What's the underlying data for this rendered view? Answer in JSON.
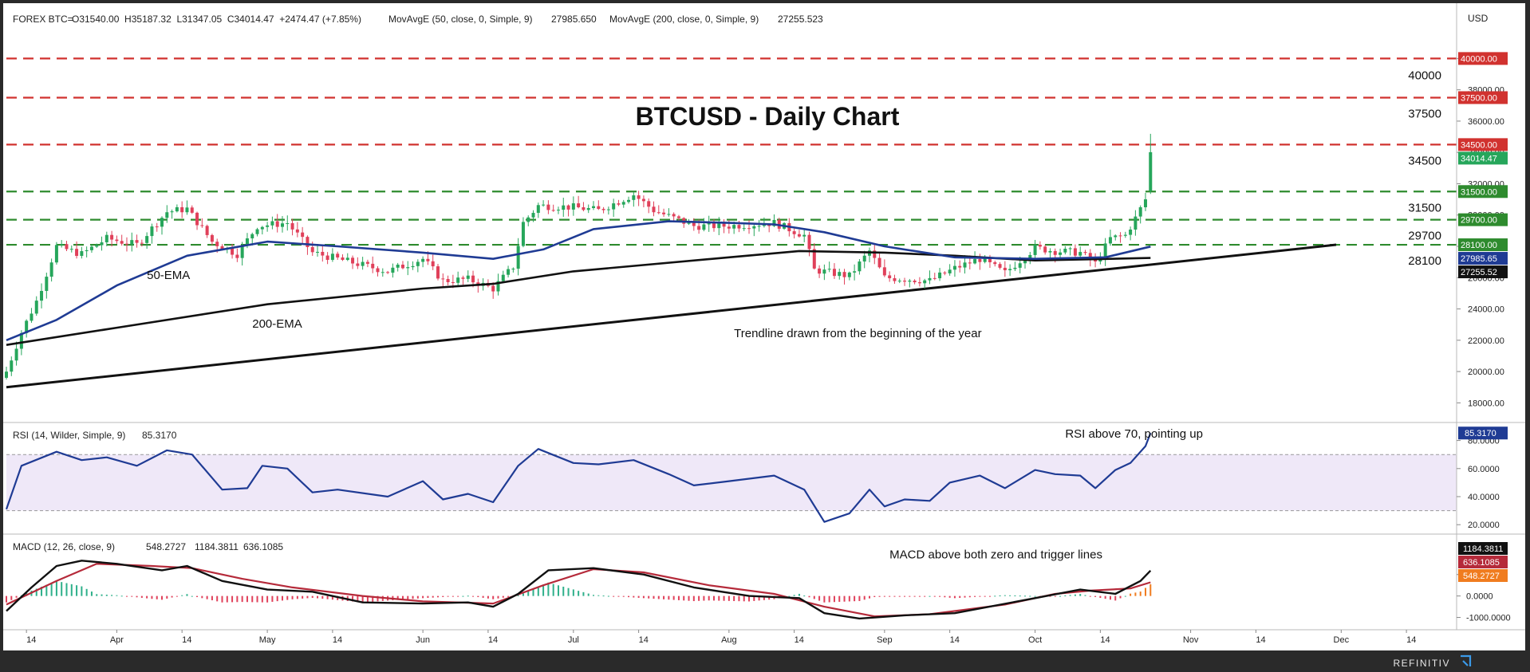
{
  "header": {
    "symbol": "FOREX BTC=",
    "ohlc": "O31540.00  H35187.32  L31347.05  C34014.47  +2474.47 (+7.85%)",
    "ma50": "MovAvgE (50, close, 0, Simple, 9)",
    "ma50_value": "27985.650",
    "ma200": "MovAvgE (200, close, 0, Simple, 9)",
    "ma200_value": "27255.523"
  },
  "axis_unit": "USD",
  "branding": "REFINITIV",
  "chart_data": [
    {
      "type": "candlestick",
      "title": "BTCUSD - Daily Chart",
      "ylim": [
        17000,
        41700
      ],
      "yticks": [
        18000,
        20000,
        22000,
        24000,
        26000,
        28000,
        30000,
        32000,
        34000,
        36000,
        38000,
        40000
      ],
      "ytick_labels": [
        "18000.00",
        "20000.00",
        "22000.00",
        "24000.00",
        "26000.00",
        "28000.00",
        "30000.00",
        "32000.00",
        "34000.00",
        "36000.00",
        "38000.00",
        "40000.00"
      ],
      "x_axis": {
        "start": "2023-03-10",
        "end": "2023-12-24",
        "ticks": [
          {
            "date": "2023-03-14",
            "label": "14"
          },
          {
            "date": "2023-04-01",
            "label": "Apr"
          },
          {
            "date": "2023-04-14",
            "label": "14"
          },
          {
            "date": "2023-05-01",
            "label": "May"
          },
          {
            "date": "2023-05-14",
            "label": "14"
          },
          {
            "date": "2023-06-01",
            "label": "Jun"
          },
          {
            "date": "2023-06-14",
            "label": "14"
          },
          {
            "date": "2023-07-01",
            "label": "Jul"
          },
          {
            "date": "2023-07-14",
            "label": "14"
          },
          {
            "date": "2023-08-01",
            "label": "Aug"
          },
          {
            "date": "2023-08-14",
            "label": "14"
          },
          {
            "date": "2023-09-01",
            "label": "Sep"
          },
          {
            "date": "2023-09-14",
            "label": "14"
          },
          {
            "date": "2023-10-01",
            "label": "Oct"
          },
          {
            "date": "2023-10-14",
            "label": "14"
          },
          {
            "date": "2023-11-01",
            "label": "Nov"
          },
          {
            "date": "2023-11-14",
            "label": "14"
          },
          {
            "date": "2023-12-01",
            "label": "Dec"
          },
          {
            "date": "2023-12-14",
            "label": "14"
          }
        ]
      },
      "close_anchors": [
        [
          "2023-03-10",
          20000
        ],
        [
          "2023-03-13",
          22500
        ],
        [
          "2023-03-16",
          24500
        ],
        [
          "2023-03-20",
          28000
        ],
        [
          "2023-03-25",
          27500
        ],
        [
          "2023-03-30",
          28500
        ],
        [
          "2023-04-05",
          28100
        ],
        [
          "2023-04-11",
          30200
        ],
        [
          "2023-04-15",
          30400
        ],
        [
          "2023-04-20",
          28300
        ],
        [
          "2023-04-25",
          27500
        ],
        [
          "2023-04-29",
          29300
        ],
        [
          "2023-05-05",
          29500
        ],
        [
          "2023-05-10",
          27600
        ],
        [
          "2023-05-15",
          27200
        ],
        [
          "2023-05-25",
          26400
        ],
        [
          "2023-06-01",
          27200
        ],
        [
          "2023-06-05",
          25800
        ],
        [
          "2023-06-10",
          25900
        ],
        [
          "2023-06-15",
          25300
        ],
        [
          "2023-06-19",
          26700
        ],
        [
          "2023-06-21",
          29500
        ],
        [
          "2023-06-24",
          30600
        ],
        [
          "2023-07-01",
          30500
        ],
        [
          "2023-07-06",
          30300
        ],
        [
          "2023-07-13",
          31300
        ],
        [
          "2023-07-17",
          30300
        ],
        [
          "2023-07-25",
          29300
        ],
        [
          "2023-08-01",
          29300
        ],
        [
          "2023-08-10",
          29500
        ],
        [
          "2023-08-16",
          28700
        ],
        [
          "2023-08-18",
          26500
        ],
        [
          "2023-08-25",
          26100
        ],
        [
          "2023-08-29",
          27700
        ],
        [
          "2023-09-01",
          26000
        ],
        [
          "2023-09-10",
          25800
        ],
        [
          "2023-09-15",
          26600
        ],
        [
          "2023-09-20",
          27200
        ],
        [
          "2023-09-25",
          26300
        ],
        [
          "2023-10-01",
          27900
        ],
        [
          "2023-10-05",
          27700
        ],
        [
          "2023-10-10",
          27600
        ],
        [
          "2023-10-13",
          26900
        ],
        [
          "2023-10-16",
          28500
        ],
        [
          "2023-10-19",
          28700
        ],
        [
          "2023-10-21",
          29800
        ],
        [
          "2023-10-23",
          31000
        ],
        [
          "2023-10-24",
          34014
        ]
      ],
      "last_candle": {
        "date": "2023-10-24",
        "open": 31540.0,
        "high": 35187.32,
        "low": 31347.05,
        "close": 34014.47
      },
      "ema50": [
        [
          "2023-03-10",
          22000
        ],
        [
          "2023-03-20",
          23300
        ],
        [
          "2023-04-01",
          25500
        ],
        [
          "2023-04-15",
          27400
        ],
        [
          "2023-05-01",
          28300
        ],
        [
          "2023-05-15",
          28000
        ],
        [
          "2023-06-01",
          27600
        ],
        [
          "2023-06-15",
          27200
        ],
        [
          "2023-06-25",
          27800
        ],
        [
          "2023-07-05",
          29100
        ],
        [
          "2023-07-20",
          29600
        ],
        [
          "2023-08-01",
          29500
        ],
        [
          "2023-08-10",
          29400
        ],
        [
          "2023-08-20",
          28900
        ],
        [
          "2023-09-01",
          28000
        ],
        [
          "2023-09-15",
          27300
        ],
        [
          "2023-10-01",
          27200
        ],
        [
          "2023-10-15",
          27300
        ],
        [
          "2023-10-24",
          27986
        ]
      ],
      "ema200": [
        [
          "2023-03-10",
          21700
        ],
        [
          "2023-04-01",
          22800
        ],
        [
          "2023-05-01",
          24300
        ],
        [
          "2023-06-01",
          25300
        ],
        [
          "2023-06-15",
          25600
        ],
        [
          "2023-07-01",
          26400
        ],
        [
          "2023-08-01",
          27300
        ],
        [
          "2023-08-15",
          27700
        ],
        [
          "2023-09-01",
          27600
        ],
        [
          "2023-09-15",
          27400
        ],
        [
          "2023-10-01",
          27100
        ],
        [
          "2023-10-24",
          27256
        ]
      ],
      "trendline": {
        "from": [
          "2023-03-10",
          19000
        ],
        "to": [
          "2023-11-30",
          28100
        ]
      },
      "levels": [
        {
          "value": 40000,
          "label": "40000",
          "badge": "40000.00",
          "color": "#d1322f",
          "side": "resistance"
        },
        {
          "value": 37500,
          "label": "37500",
          "badge": "37500.00",
          "color": "#d1322f",
          "side": "resistance"
        },
        {
          "value": 34500,
          "label": "34500",
          "badge": "34500.00",
          "color": "#d1322f",
          "side": "resistance"
        },
        {
          "value": 31500,
          "label": "31500",
          "badge": "31500.00",
          "color": "#2e8b2e",
          "side": "support"
        },
        {
          "value": 29700,
          "label": "29700",
          "badge": "29700.00",
          "color": "#2e8b2e",
          "side": "support"
        },
        {
          "value": 28100,
          "label": "28100",
          "badge": "28100.00",
          "color": "#2e8b2e",
          "side": "support"
        }
      ],
      "price_badges": [
        {
          "value": 34014.47,
          "label": "34014.47",
          "color": "#26a65b"
        },
        {
          "value": 27985.65,
          "label": "27985.65",
          "color": "#1f3b94"
        },
        {
          "value": 27255.52,
          "label": "27255.52",
          "color": "#111111"
        }
      ],
      "annotations": [
        {
          "text": "50-EMA",
          "at": [
            "2023-04-07",
            25900
          ]
        },
        {
          "text": "200-EMA",
          "at": [
            "2023-04-28",
            22800
          ]
        },
        {
          "text": "Trendline drawn from the beginning of the year",
          "at": [
            "2023-08-02",
            22200
          ]
        }
      ],
      "colors": {
        "up": "#26a65b",
        "down": "#e0405a",
        "ema50": "#1f3b94",
        "ema200": "#111111"
      }
    },
    {
      "type": "line",
      "title": "RSI (14, Wilder, Simple, 9)",
      "value_label": "85.3170",
      "ylim": [
        15,
        90
      ],
      "yticks": [
        20,
        40,
        60,
        80
      ],
      "ytick_labels": [
        "20.0000",
        "40.0000",
        "60.0000",
        "80.0000"
      ],
      "band": [
        30,
        70
      ],
      "series": [
        {
          "points": [
            [
              "2023-03-10",
              31
            ],
            [
              "2023-03-13",
              62
            ],
            [
              "2023-03-20",
              72
            ],
            [
              "2023-03-25",
              66
            ],
            [
              "2023-03-30",
              68
            ],
            [
              "2023-04-05",
              62
            ],
            [
              "2023-04-11",
              73
            ],
            [
              "2023-04-16",
              70
            ],
            [
              "2023-04-22",
              45
            ],
            [
              "2023-04-27",
              46
            ],
            [
              "2023-04-30",
              62
            ],
            [
              "2023-05-05",
              60
            ],
            [
              "2023-05-10",
              43
            ],
            [
              "2023-05-15",
              45
            ],
            [
              "2023-05-25",
              40
            ],
            [
              "2023-06-01",
              51
            ],
            [
              "2023-06-05",
              38
            ],
            [
              "2023-06-10",
              42
            ],
            [
              "2023-06-15",
              36
            ],
            [
              "2023-06-20",
              62
            ],
            [
              "2023-06-24",
              74
            ],
            [
              "2023-07-01",
              64
            ],
            [
              "2023-07-06",
              63
            ],
            [
              "2023-07-13",
              66
            ],
            [
              "2023-07-20",
              56
            ],
            [
              "2023-07-25",
              48
            ],
            [
              "2023-08-01",
              51
            ],
            [
              "2023-08-10",
              55
            ],
            [
              "2023-08-16",
              45
            ],
            [
              "2023-08-20",
              22
            ],
            [
              "2023-08-25",
              28
            ],
            [
              "2023-08-29",
              45
            ],
            [
              "2023-09-01",
              33
            ],
            [
              "2023-09-05",
              38
            ],
            [
              "2023-09-10",
              37
            ],
            [
              "2023-09-14",
              50
            ],
            [
              "2023-09-20",
              55
            ],
            [
              "2023-09-25",
              46
            ],
            [
              "2023-10-01",
              59
            ],
            [
              "2023-10-05",
              56
            ],
            [
              "2023-10-10",
              55
            ],
            [
              "2023-10-13",
              46
            ],
            [
              "2023-10-17",
              59
            ],
            [
              "2023-10-20",
              64
            ],
            [
              "2023-10-23",
              76
            ],
            [
              "2023-10-24",
              85.317
            ]
          ]
        }
      ],
      "annotations": [
        {
          "text": "RSI above 70, pointing up",
          "at": [
            "2023-10-07",
            82
          ]
        }
      ],
      "colors": {
        "line": "#1f3b94",
        "band": "#efe8f8"
      }
    },
    {
      "type": "macd",
      "title": "MACD (12, 26, close, 9)",
      "hist_label": "548.2727",
      "macd_label": "1184.3811",
      "signal_label": "636.1085",
      "ylim": [
        -1500,
        2700
      ],
      "yticks": [
        -1000,
        0,
        1000
      ],
      "ytick_labels": [
        "-1000.0000",
        "0.0000",
        "1000.0000"
      ],
      "macd": [
        [
          "2023-03-10",
          -700
        ],
        [
          "2023-03-15",
          400
        ],
        [
          "2023-03-20",
          1400
        ],
        [
          "2023-03-25",
          1650
        ],
        [
          "2023-04-01",
          1500
        ],
        [
          "2023-04-10",
          1200
        ],
        [
          "2023-04-15",
          1400
        ],
        [
          "2023-04-22",
          700
        ],
        [
          "2023-05-01",
          300
        ],
        [
          "2023-05-10",
          200
        ],
        [
          "2023-05-20",
          -300
        ],
        [
          "2023-06-01",
          -350
        ],
        [
          "2023-06-10",
          -300
        ],
        [
          "2023-06-15",
          -500
        ],
        [
          "2023-06-20",
          100
        ],
        [
          "2023-06-26",
          1200
        ],
        [
          "2023-07-05",
          1300
        ],
        [
          "2023-07-15",
          1000
        ],
        [
          "2023-07-25",
          400
        ],
        [
          "2023-08-05",
          0
        ],
        [
          "2023-08-15",
          -100
        ],
        [
          "2023-08-20",
          -800
        ],
        [
          "2023-08-27",
          -1050
        ],
        [
          "2023-09-05",
          -900
        ],
        [
          "2023-09-15",
          -800
        ],
        [
          "2023-10-01",
          -100
        ],
        [
          "2023-10-10",
          300
        ],
        [
          "2023-10-17",
          100
        ],
        [
          "2023-10-22",
          700
        ],
        [
          "2023-10-24",
          1184.3811
        ]
      ],
      "signal": [
        [
          "2023-03-10",
          -400
        ],
        [
          "2023-03-20",
          700
        ],
        [
          "2023-03-28",
          1500
        ],
        [
          "2023-04-08",
          1400
        ],
        [
          "2023-04-16",
          1300
        ],
        [
          "2023-04-26",
          800
        ],
        [
          "2023-05-06",
          400
        ],
        [
          "2023-05-20",
          0
        ],
        [
          "2023-06-01",
          -250
        ],
        [
          "2023-06-15",
          -350
        ],
        [
          "2023-06-25",
          500
        ],
        [
          "2023-07-05",
          1250
        ],
        [
          "2023-07-15",
          1100
        ],
        [
          "2023-07-28",
          500
        ],
        [
          "2023-08-10",
          100
        ],
        [
          "2023-08-20",
          -500
        ],
        [
          "2023-08-30",
          -950
        ],
        [
          "2023-09-10",
          -850
        ],
        [
          "2023-09-25",
          -400
        ],
        [
          "2023-10-05",
          100
        ],
        [
          "2023-10-12",
          250
        ],
        [
          "2023-10-20",
          350
        ],
        [
          "2023-10-24",
          636.1085
        ]
      ],
      "annotations": [
        {
          "text": "MACD above both zero and trigger lines",
          "at": [
            "2023-09-02",
            1750
          ]
        }
      ],
      "colors": {
        "macd": "#111111",
        "signal": "#b52a3a",
        "hist_up": "#2eb08a",
        "hist_down": "#e0405a",
        "hist_last": "#f07c1f"
      }
    }
  ]
}
